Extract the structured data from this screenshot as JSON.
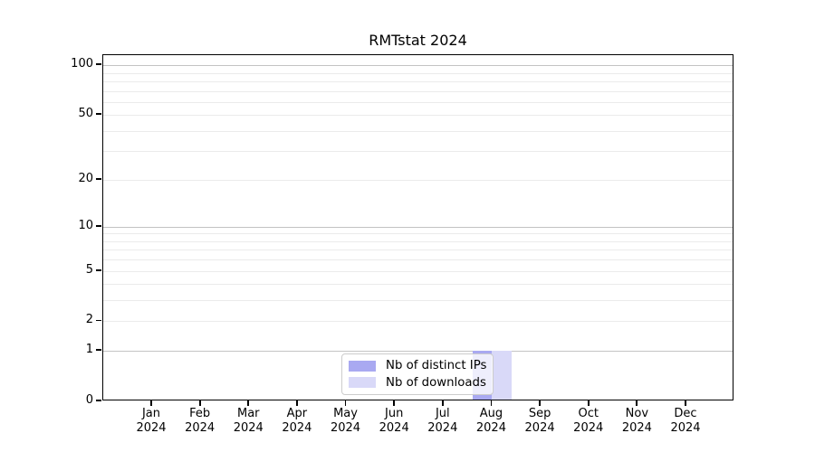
{
  "chart_data": {
    "type": "bar",
    "title": "RMTstat 2024",
    "x_categories": [
      "Jan",
      "Feb",
      "Mar",
      "Apr",
      "May",
      "Jun",
      "Jul",
      "Aug",
      "Sep",
      "Oct",
      "Nov",
      "Dec"
    ],
    "x_year": "2024",
    "series": [
      {
        "name": "Nb of distinct IPs",
        "color": "#a9a9f1",
        "values": [
          0,
          0,
          0,
          0,
          0,
          0,
          0,
          1,
          0,
          0,
          0,
          0
        ]
      },
      {
        "name": "Nb of downloads",
        "color": "#d9d9f8",
        "values": [
          0,
          0,
          0,
          0,
          0,
          0,
          0,
          1,
          0,
          0,
          0,
          0
        ]
      }
    ],
    "yscale": "log1p",
    "ylim": [
      0,
      115
    ],
    "ytick_values": [
      100,
      50,
      20,
      10,
      5,
      2,
      1,
      0
    ],
    "ytick_labels": [
      "100",
      "50",
      "20",
      "10",
      "5",
      "2",
      "1",
      "0"
    ],
    "major_grid_values": [
      1,
      10,
      100
    ],
    "minor_grid_values": [
      2,
      3,
      4,
      5,
      6,
      7,
      8,
      9,
      20,
      30,
      40,
      50,
      60,
      70,
      80,
      90
    ],
    "grid": true,
    "legend_position": "lower center",
    "colors": {
      "major_grid": "#c3c3c3",
      "minor_grid": "#ebebeb",
      "axis": "#000000",
      "background": "#ffffff"
    }
  }
}
